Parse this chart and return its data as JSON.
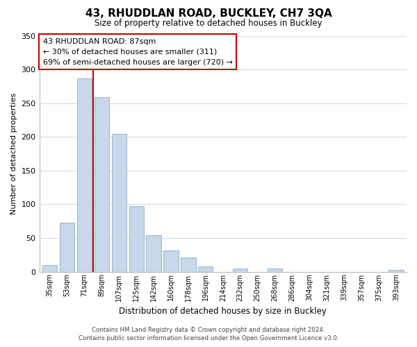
{
  "title": "43, RHUDDLAN ROAD, BUCKLEY, CH7 3QA",
  "subtitle": "Size of property relative to detached houses in Buckley",
  "xlabel": "Distribution of detached houses by size in Buckley",
  "ylabel": "Number of detached properties",
  "bar_labels": [
    "35sqm",
    "53sqm",
    "71sqm",
    "89sqm",
    "107sqm",
    "125sqm",
    "142sqm",
    "160sqm",
    "178sqm",
    "196sqm",
    "214sqm",
    "232sqm",
    "250sqm",
    "268sqm",
    "286sqm",
    "304sqm",
    "321sqm",
    "339sqm",
    "357sqm",
    "375sqm",
    "393sqm"
  ],
  "bar_values": [
    10,
    73,
    287,
    259,
    204,
    97,
    54,
    31,
    21,
    8,
    0,
    5,
    0,
    5,
    0,
    0,
    0,
    0,
    0,
    0,
    3
  ],
  "bar_color": "#c8d8ea",
  "bar_edge_color": "#a0b8cc",
  "vline_x_idx": 2.5,
  "vline_color": "#cc0000",
  "ylim": [
    0,
    350
  ],
  "yticks": [
    0,
    50,
    100,
    150,
    200,
    250,
    300,
    350
  ],
  "annotation_title": "43 RHUDDLAN ROAD: 87sqm",
  "annotation_line1": "← 30% of detached houses are smaller (311)",
  "annotation_line2": "69% of semi-detached houses are larger (720) →",
  "annotation_box_color": "#ffffff",
  "annotation_box_edge": "#cc0000",
  "footer_line1": "Contains HM Land Registry data © Crown copyright and database right 2024.",
  "footer_line2": "Contains public sector information licensed under the Open Government Licence v3.0.",
  "background_color": "#ffffff",
  "grid_color": "#ccd8e4"
}
